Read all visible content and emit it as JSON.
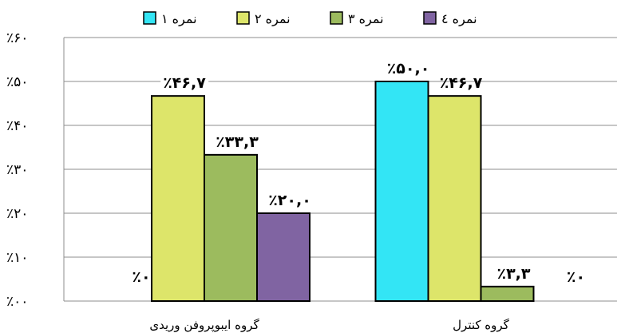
{
  "chart_data": {
    "type": "bar",
    "categories": [
      "گروه ایبوپروفن وریدی",
      "گروه کنترل"
    ],
    "series": [
      {
        "name": "نمره ۱",
        "values": [
          0,
          50.0
        ],
        "color": "#33E5F5"
      },
      {
        "name": "نمره ۲",
        "values": [
          46.7,
          46.7
        ],
        "color": "#DDE56A"
      },
      {
        "name": "نمره ۳",
        "values": [
          33.3,
          3.3
        ],
        "color": "#9CBB5E"
      },
      {
        "name": "نمره ٤",
        "values": [
          20.0,
          0
        ],
        "color": "#8064A2"
      }
    ],
    "data_labels": [
      [
        "٪۰",
        "٪۴۶,۷",
        "٪۳۳,۳",
        "٪۲۰,۰"
      ],
      [
        "٪۵۰,۰",
        "٪۴۶,۷",
        "٪۳,۳",
        "٪۰"
      ]
    ],
    "y_ticks": [
      {
        "value": 0,
        "label": "٪۰۰"
      },
      {
        "value": 10,
        "label": "٪۱۰"
      },
      {
        "value": 20,
        "label": "٪۲۰"
      },
      {
        "value": 30,
        "label": "٪۳۰"
      },
      {
        "value": 40,
        "label": "٪۴۰"
      },
      {
        "value": 50,
        "label": "٪۵۰"
      },
      {
        "value": 60,
        "label": "٪۶۰"
      }
    ],
    "ylim": [
      0,
      60
    ],
    "grid": true,
    "legend_position": "top"
  }
}
